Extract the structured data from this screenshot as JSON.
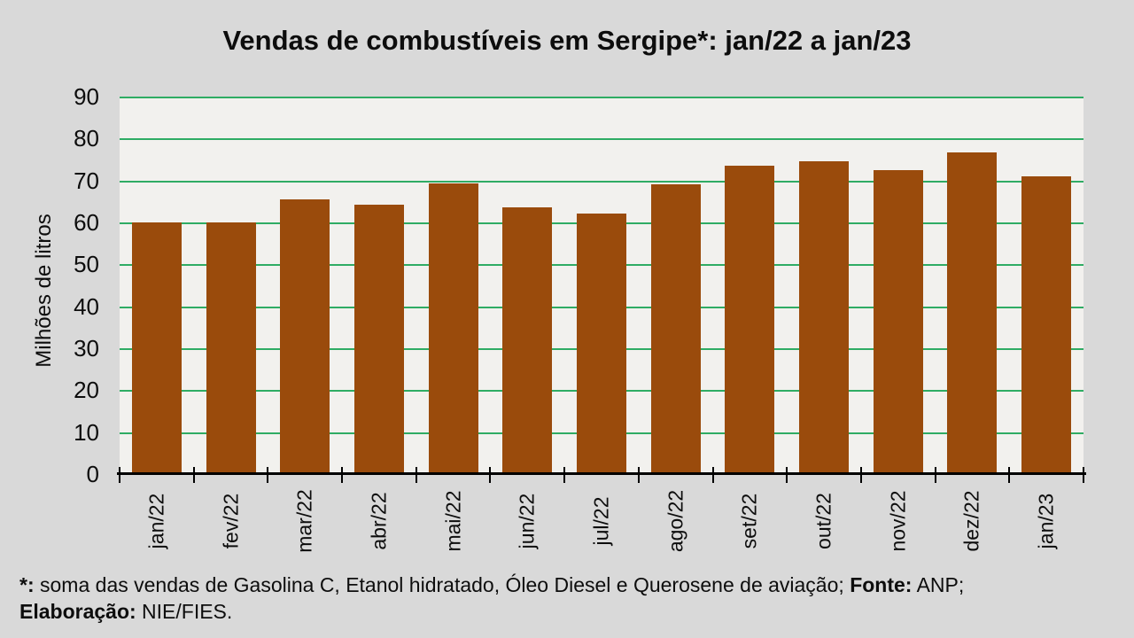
{
  "title": "Vendas de combustíveis em Sergipe*: jan/22 a jan/23",
  "chart_data": {
    "type": "bar",
    "title": "Vendas de combustíveis em Sergipe*: jan/22 a jan/23",
    "categories": [
      "jan/22",
      "fev/22",
      "mar/22",
      "abr/22",
      "mai/22",
      "jun/22",
      "jul/22",
      "ago/22",
      "set/22",
      "out/22",
      "nov/22",
      "dez/22",
      "jan/23"
    ],
    "values": [
      60.0,
      60.0,
      65.4,
      64.2,
      69.4,
      63.6,
      62.1,
      69.0,
      73.6,
      74.5,
      72.5,
      76.6,
      71.0
    ],
    "xlabel": "",
    "ylabel": "Milhões de litros",
    "ylim": [
      0,
      90
    ],
    "yticks": [
      0,
      10,
      20,
      30,
      40,
      50,
      60,
      70,
      80,
      90
    ],
    "grid": true,
    "legend": false,
    "colors": {
      "bar": "#9A4B0C",
      "gridline": "#2FAC64",
      "plot_background": "#F2F1EE",
      "page_background": "#D9D9D9",
      "axis": "#000000",
      "text": "#0D0D0D"
    }
  },
  "footer": {
    "lines": [
      [
        {
          "text": "*:",
          "bold": true
        },
        {
          "text": " soma das vendas de Gasolina C, Etanol hidratado, Óleo Diesel e Querosene de aviação; ",
          "bold": false
        },
        {
          "text": "Fonte:",
          "bold": true
        },
        {
          "text": " ANP;",
          "bold": false
        }
      ],
      [
        {
          "text": "Elaboração:",
          "bold": true
        },
        {
          "text": " NIE/FIES.",
          "bold": false
        }
      ]
    ]
  }
}
